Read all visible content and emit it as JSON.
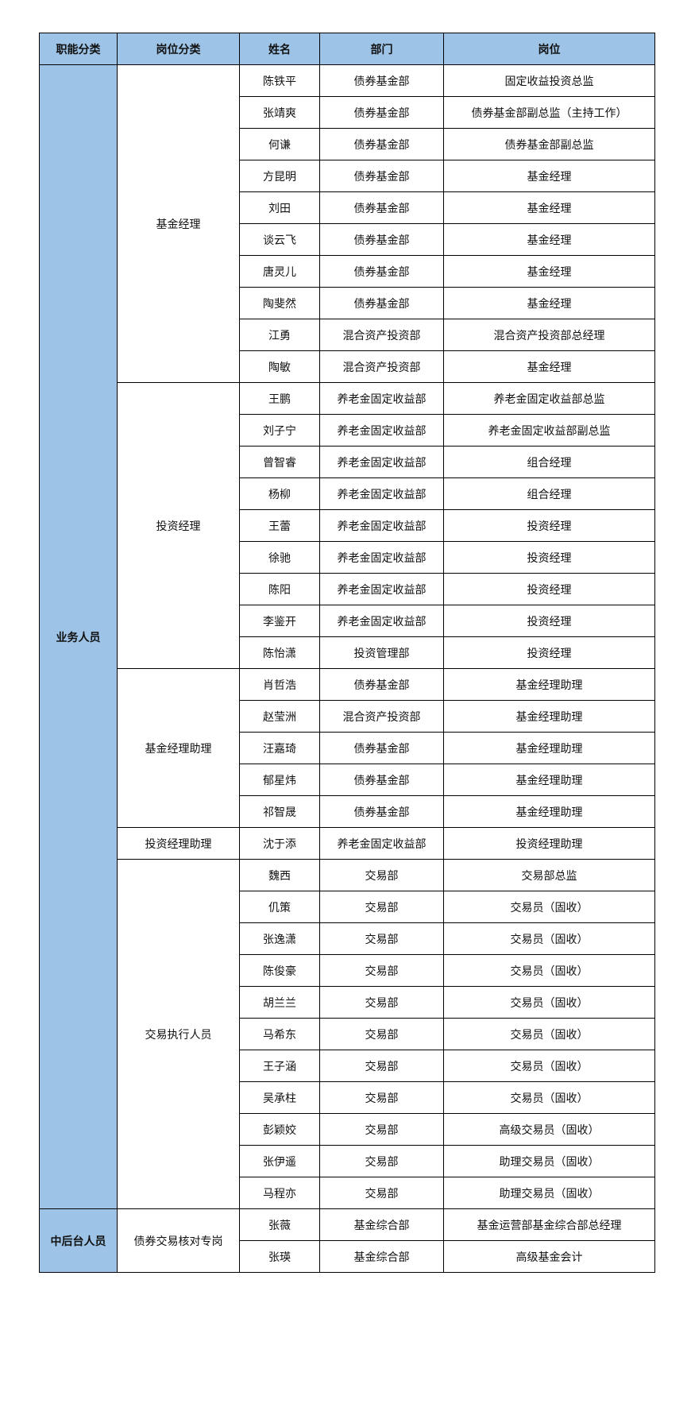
{
  "header": [
    "职能分类",
    "岗位分类",
    "姓名",
    "部门",
    "岗位"
  ],
  "categories": [
    {
      "name": "业务人员",
      "groups": [
        {
          "name": "基金经理",
          "rows": [
            [
              "陈铁平",
              "债券基金部",
              "固定收益投资总监"
            ],
            [
              "张靖爽",
              "债券基金部",
              "债券基金部副总监（主持工作）"
            ],
            [
              "何谦",
              "债券基金部",
              "债券基金部副总监"
            ],
            [
              "方昆明",
              "债券基金部",
              "基金经理"
            ],
            [
              "刘田",
              "债券基金部",
              "基金经理"
            ],
            [
              "谈云飞",
              "债券基金部",
              "基金经理"
            ],
            [
              "唐灵儿",
              "债券基金部",
              "基金经理"
            ],
            [
              "陶斐然",
              "债券基金部",
              "基金经理"
            ],
            [
              "江勇",
              "混合资产投资部",
              "混合资产投资部总经理"
            ],
            [
              "陶敏",
              "混合资产投资部",
              "基金经理"
            ]
          ]
        },
        {
          "name": "投资经理",
          "rows": [
            [
              "王鹏",
              "养老金固定收益部",
              "养老金固定收益部总监"
            ],
            [
              "刘子宁",
              "养老金固定收益部",
              "养老金固定收益部副总监"
            ],
            [
              "曾智睿",
              "养老金固定收益部",
              "组合经理"
            ],
            [
              "杨柳",
              "养老金固定收益部",
              "组合经理"
            ],
            [
              "王蕾",
              "养老金固定收益部",
              "投资经理"
            ],
            [
              "徐驰",
              "养老金固定收益部",
              "投资经理"
            ],
            [
              "陈阳",
              "养老金固定收益部",
              "投资经理"
            ],
            [
              "李鉴开",
              "养老金固定收益部",
              "投资经理"
            ],
            [
              "陈怡潇",
              "投资管理部",
              "投资经理"
            ]
          ]
        },
        {
          "name": "基金经理助理",
          "rows": [
            [
              "肖哲浩",
              "债券基金部",
              "基金经理助理"
            ],
            [
              "赵莹洲",
              "混合资产投资部",
              "基金经理助理"
            ],
            [
              "汪嘉琦",
              "债券基金部",
              "基金经理助理"
            ],
            [
              "郁星炜",
              "债券基金部",
              "基金经理助理"
            ],
            [
              "祁智晟",
              "债券基金部",
              "基金经理助理"
            ]
          ]
        },
        {
          "name": "投资经理助理",
          "rows": [
            [
              "沈于添",
              "养老金固定收益部",
              "投资经理助理"
            ]
          ]
        },
        {
          "name": "交易执行人员",
          "rows": [
            [
              "魏西",
              "交易部",
              "交易部总监"
            ],
            [
              "仉策",
              "交易部",
              "交易员（固收）"
            ],
            [
              "张逸潇",
              "交易部",
              "交易员（固收）"
            ],
            [
              "陈俊豪",
              "交易部",
              "交易员（固收）"
            ],
            [
              "胡兰兰",
              "交易部",
              "交易员（固收）"
            ],
            [
              "马希东",
              "交易部",
              "交易员（固收）"
            ],
            [
              "王子涵",
              "交易部",
              "交易员（固收）"
            ],
            [
              "吴承柱",
              "交易部",
              "交易员（固收）"
            ],
            [
              "彭颖姣",
              "交易部",
              "高级交易员（固收）"
            ],
            [
              "张伊遥",
              "交易部",
              "助理交易员（固收）"
            ],
            [
              "马程亦",
              "交易部",
              "助理交易员（固收）"
            ]
          ]
        }
      ]
    },
    {
      "name": "中后台人员",
      "groups": [
        {
          "name": "债券交易核对专岗",
          "rows": [
            [
              "张薇",
              "基金综合部",
              "基金运营部基金综合部总经理"
            ],
            [
              "张瑛",
              "基金综合部",
              "高级基金会计"
            ]
          ]
        }
      ]
    }
  ],
  "colors": {
    "header_bg": "#9dc3e6",
    "border": "#000000"
  }
}
